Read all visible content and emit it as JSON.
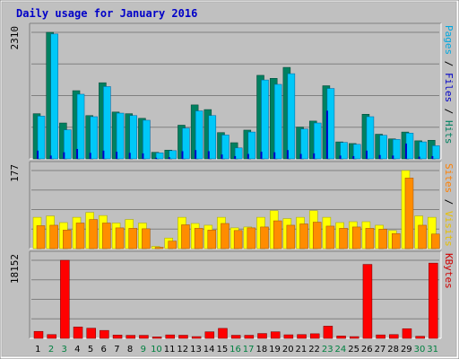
{
  "chart_data": {
    "type": "bar",
    "title": "Daily usage for January 2016",
    "categories": [
      "1",
      "2",
      "3",
      "4",
      "5",
      "6",
      "7",
      "8",
      "9",
      "10",
      "11",
      "12",
      "13",
      "14",
      "15",
      "16",
      "17",
      "18",
      "19",
      "20",
      "21",
      "22",
      "23",
      "24",
      "25",
      "26",
      "27",
      "28",
      "29",
      "30",
      "31"
    ],
    "weekend_days": [
      "2",
      "3",
      "9",
      "10",
      "16",
      "17",
      "23",
      "24",
      "30",
      "31"
    ],
    "panels": [
      {
        "id": "top",
        "max_label": "2310",
        "ymax": 2310,
        "legend": [
          {
            "text": "Pages",
            "color": "#00A8E0"
          },
          {
            "text": " / ",
            "color": "#000000"
          },
          {
            "text": "Files",
            "color": "#0000C8"
          },
          {
            "text": " / ",
            "color": "#000000"
          },
          {
            "text": "Hits",
            "color": "#008060"
          }
        ],
        "series": [
          {
            "name": "Hits",
            "color": "#008060",
            "values": [
              825,
              2310,
              655,
              1245,
              790,
              1390,
              855,
              825,
              740,
              120,
              160,
              615,
              985,
              900,
              480,
              295,
              525,
              1525,
              1470,
              1670,
              580,
              690,
              1335,
              310,
              280,
              815,
              450,
              365,
              490,
              330,
              340
            ]
          },
          {
            "name": "Files",
            "color": "#0000C8",
            "values": [
              150,
              60,
              120,
              180,
              110,
              150,
              130,
              110,
              100,
              20,
              30,
              140,
              160,
              140,
              80,
              50,
              90,
              130,
              120,
              160,
              90,
              100,
              880,
              60,
              50,
              150,
              70,
              60,
              280,
              40,
              50
            ]
          },
          {
            "name": "Pages",
            "color": "#00C8F8",
            "values": [
              780,
              2280,
              530,
              1180,
              770,
              1320,
              835,
              790,
              705,
              110,
              150,
              560,
              875,
              790,
              435,
              200,
              490,
              1440,
              1360,
              1555,
              545,
              655,
              1285,
              300,
              265,
              770,
              430,
              355,
              470,
              310,
              240
            ]
          }
        ]
      },
      {
        "id": "mid",
        "max_label": "177",
        "ymax": 177,
        "legend": [
          {
            "text": "Sites",
            "color": "#FF8000"
          },
          {
            "text": " / ",
            "color": "#000000"
          },
          {
            "text": "Visits",
            "color": "#E8C000"
          }
        ],
        "series": [
          {
            "name": "Visits",
            "color": "#FFFF00",
            "values": [
              71,
              74,
              59,
              71,
              82,
              75,
              58,
              66,
              58,
              5,
              24,
              71,
              57,
              53,
              71,
              47,
              49,
              71,
              86,
              68,
              71,
              86,
              71,
              59,
              61,
              61,
              53,
              41,
              177,
              74,
              71
            ]
          },
          {
            "name": "Sites",
            "color": "#FF8C00",
            "values": [
              52,
              53,
              42,
              58,
              66,
              58,
              47,
              46,
              45,
              3,
              17,
              54,
              46,
              42,
              57,
              41,
              47,
              49,
              63,
              53,
              56,
              60,
              51,
              46,
              49,
              46,
              44,
              34,
              160,
              53,
              33
            ]
          }
        ]
      },
      {
        "id": "bot",
        "max_label": "18152",
        "ymax": 18152,
        "legend": [
          {
            "text": "KBytes",
            "color": "#D00000"
          }
        ],
        "series": [
          {
            "name": "KBytes",
            "color": "#FF0000",
            "values": [
              1630,
              880,
              18152,
              2650,
              2370,
              1850,
              780,
              710,
              710,
              340,
              810,
              730,
              410,
              1530,
              2320,
              720,
              720,
              1130,
              1530,
              830,
              880,
              1070,
              2840,
              550,
              410,
              17200,
              810,
              880,
              2250,
              490,
              17500
            ]
          }
        ]
      }
    ],
    "colors": {
      "background": "#FFFFFF",
      "plot_bg": "#C0C0C0",
      "frame": "#808080",
      "grid": "#808080",
      "title": "#0000C8",
      "weekday_label": "#000000",
      "weekend_label": "#008040"
    },
    "grid": true,
    "legend_placement": "right-vertical"
  }
}
